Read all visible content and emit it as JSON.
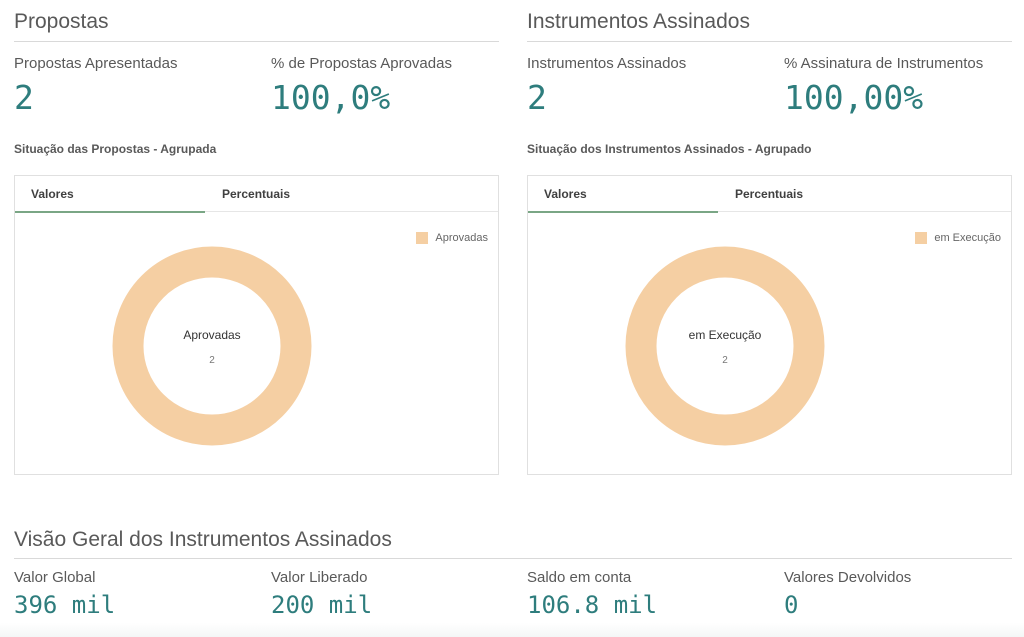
{
  "propostas": {
    "title": "Propostas",
    "kpis": [
      {
        "label": "Propostas Apresentadas",
        "value": "2"
      },
      {
        "label": "% de Propostas Aprovadas",
        "value": "100,0%"
      }
    ],
    "chart": {
      "title": "Situação das Propostas - Agrupada",
      "tabs": [
        "Valores",
        "Percentuais"
      ],
      "active_tab": "Valores",
      "legend": "Aprovadas",
      "center_label": "Aprovadas",
      "center_value": "2"
    }
  },
  "instrumentos": {
    "title": "Instrumentos Assinados",
    "kpis": [
      {
        "label": "Instrumentos Assinados",
        "value": "2"
      },
      {
        "label": "% Assinatura de Instrumentos",
        "value": "100,00%"
      }
    ],
    "chart": {
      "title": "Situação dos Instrumentos Assinados - Agrupado",
      "tabs": [
        "Valores",
        "Percentuais"
      ],
      "active_tab": "Valores",
      "legend": "em Execução",
      "center_label": "em Execução",
      "center_value": "2"
    }
  },
  "visao_geral": {
    "title": "Visão Geral dos Instrumentos Assinados",
    "kpis": [
      {
        "label": "Valor Global",
        "value": "396 mil"
      },
      {
        "label": "Valor Liberado",
        "value": "200 mil"
      },
      {
        "label": "Saldo em conta",
        "value": "106.8 mil"
      },
      {
        "label": "Valores Devolvidos",
        "value": "0"
      }
    ]
  },
  "chart_data": [
    {
      "type": "pie",
      "title": "Situação das Propostas - Agrupada",
      "categories": [
        "Aprovadas"
      ],
      "values": [
        2
      ],
      "legend": "top-right",
      "colors": [
        "#f5cfa3"
      ]
    },
    {
      "type": "pie",
      "title": "Situação dos Instrumentos Assinados - Agrupado",
      "categories": [
        "em Execução"
      ],
      "values": [
        2
      ],
      "legend": "top-right",
      "colors": [
        "#f5cfa3"
      ]
    }
  ],
  "colors": {
    "kpi_value": "#2e7d7d",
    "donut": "#f5cfa3",
    "tab_underline": "#7aa685"
  }
}
